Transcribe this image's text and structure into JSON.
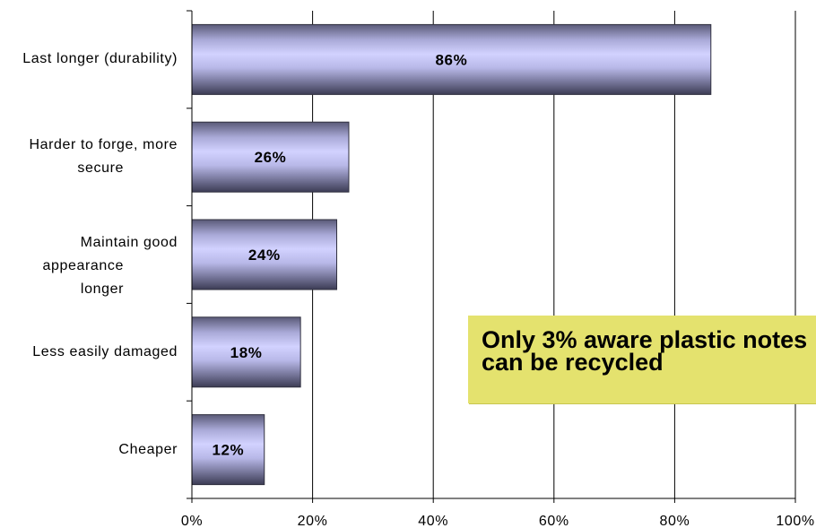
{
  "chart_data": {
    "type": "bar",
    "orientation": "horizontal",
    "categories": [
      "Last longer (durability)",
      "Harder to forge, more secure",
      "Maintain good appearance longer",
      "Less easily damaged",
      "Cheaper"
    ],
    "category_lines": [
      [
        "Last longer (durability)"
      ],
      [
        "Harder to forge, more",
        "secure"
      ],
      [
        "Maintain good",
        "appearance longer"
      ],
      [
        "Less easily damaged"
      ],
      [
        "Cheaper"
      ]
    ],
    "values": [
      86,
      26,
      24,
      18,
      12
    ],
    "data_labels": [
      "86%",
      "26%",
      "24%",
      "18%",
      "12%"
    ],
    "xlim": [
      0,
      100
    ],
    "x_ticks": [
      0,
      20,
      40,
      60,
      80,
      100
    ],
    "x_tick_labels": [
      "0%",
      "20%",
      "40%",
      "60%",
      "80%",
      "100%"
    ],
    "grid": "vertical",
    "bar_color": "#ccccff",
    "title": "",
    "xlabel": "",
    "ylabel": ""
  },
  "callout": {
    "text": "Only 3% aware plastic notes\ncan be recycled",
    "background": "#e4e26e"
  }
}
